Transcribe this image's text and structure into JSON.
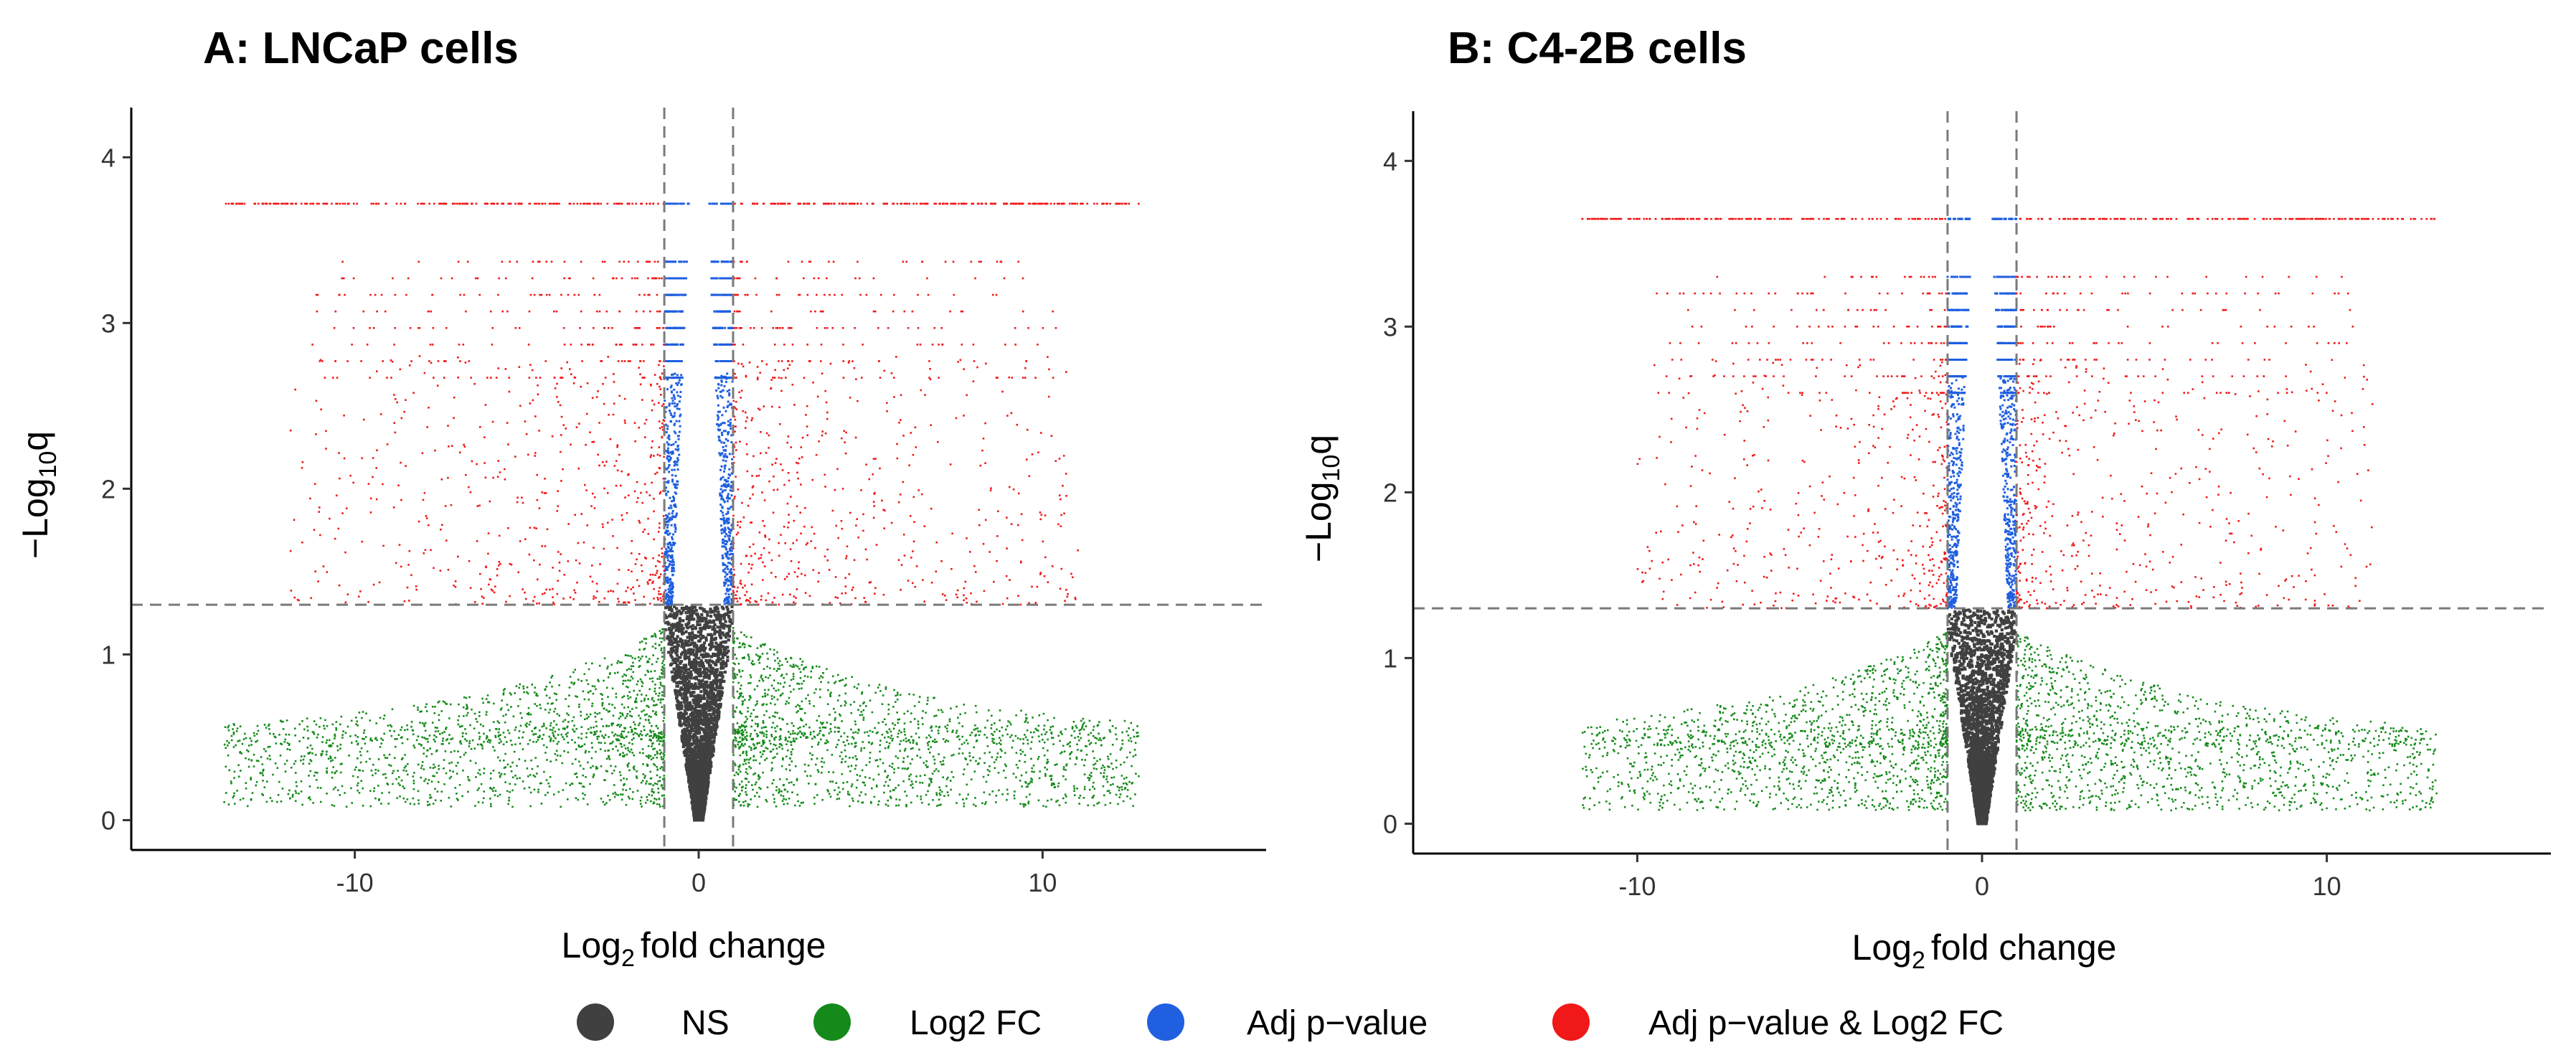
{
  "chart_data": [
    {
      "type": "scatter",
      "subtype": "volcano",
      "title": "A: LNCaP cells",
      "xlabel_main": "Log",
      "xlabel_sub": "2",
      "xlabel_rest": "fold change",
      "ylabel_main": "−Log",
      "ylabel_sub": "10",
      "ylabel_rest": "q",
      "xlim": [
        -16.5,
        16.5
      ],
      "ylim": [
        -0.18,
        4.3
      ],
      "xticks": [
        -10,
        0,
        10
      ],
      "xtick_labels": [
        "-10",
        "0",
        "10"
      ],
      "yticks": [
        0,
        1,
        2,
        3,
        4
      ],
      "ytick_labels": [
        "0",
        "1",
        "2",
        "3",
        "4"
      ],
      "fc_cutoff": 1,
      "q_cutoff": 1.3,
      "max_q": 3.72,
      "x_extent": [
        -13.8,
        12.8
      ],
      "point_counts": {
        "NS": 3000,
        "Log2 FC": 3200,
        "Adj p-value": 1300,
        "Adj p-value & Log2 FC": 1900
      },
      "seed": 17
    },
    {
      "type": "scatter",
      "subtype": "volcano",
      "title": "B: C4-2B cells",
      "xlabel_main": "Log",
      "xlabel_sub": "2",
      "xlabel_rest": "fold change",
      "ylabel_main": "−Log",
      "ylabel_sub": "10",
      "ylabel_rest": "q",
      "xlim": [
        -16.5,
        16.5
      ],
      "ylim": [
        -0.18,
        4.3
      ],
      "xticks": [
        -10,
        0,
        10
      ],
      "xtick_labels": [
        "-10",
        "0",
        "10"
      ],
      "yticks": [
        0,
        1,
        2,
        3,
        4
      ],
      "ytick_labels": [
        "0",
        "1",
        "2",
        "3",
        "4"
      ],
      "fc_cutoff": 1,
      "q_cutoff": 1.3,
      "max_q": 3.65,
      "x_extent": [
        -11.6,
        13.2
      ],
      "point_counts": {
        "NS": 3000,
        "Log2 FC": 3000,
        "Adj p-value": 1300,
        "Adj p-value & Log2 FC": 1700
      },
      "seed": 91
    }
  ],
  "legend": [
    {
      "key": "ns",
      "label": "NS",
      "color": "#404040"
    },
    {
      "key": "fc",
      "label": "Log2 FC",
      "color": "#158a1a"
    },
    {
      "key": "p",
      "label": "Adj p−value",
      "color": "#1f5fe0"
    },
    {
      "key": "both",
      "label": "Adj p−value & Log2 FC",
      "color": "#f01818"
    }
  ],
  "colors": {
    "threshold_line": "#7a7a7a",
    "axis": "#000000"
  }
}
